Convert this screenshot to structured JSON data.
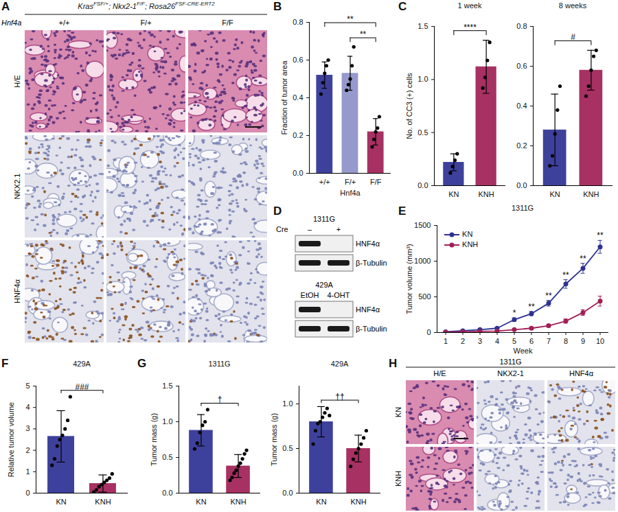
{
  "figure": {
    "A": {
      "panel": "A",
      "genotype": [
        {
          "text": "Kras",
          "sup": "FSF/+"
        },
        {
          "text": "; Nkx2-1",
          "sup": "F/F"
        },
        {
          "text": "; Rosa26",
          "sup": "FSF-CRE-ERT2"
        }
      ],
      "column_header": "Hnf4a",
      "columns": [
        "+/+",
        "F/+",
        "F/F"
      ],
      "rows": [
        "H/E",
        "NKX2.1",
        "HNF4α"
      ]
    },
    "D": {
      "panel": "D",
      "blots": [
        {
          "title": "1311G",
          "lane_header": "Cre",
          "lanes": [
            "–",
            "+"
          ],
          "rows": [
            {
              "label": "HNF4α",
              "bands": [
                true,
                false
              ]
            },
            {
              "label": "β-Tubulin",
              "bands": [
                true,
                true
              ]
            }
          ]
        },
        {
          "title": "429A",
          "lanes": [
            "EtOH",
            "4-OHT"
          ],
          "rows": [
            {
              "label": "HNF4α",
              "bands": [
                true,
                false
              ]
            },
            {
              "label": "β-Tubulin",
              "bands": [
                true,
                true
              ]
            }
          ]
        }
      ]
    },
    "H": {
      "panel": "H",
      "title": "1311G",
      "columns": [
        "H/E",
        "NKX2-1",
        "HNF4α"
      ],
      "rows": [
        "KN",
        "KNH"
      ]
    }
  },
  "chart_data": [
    {
      "panel": "B",
      "type": "bar",
      "categories": [
        "+/+",
        "F/+",
        "F/F"
      ],
      "values": [
        0.52,
        0.53,
        0.22
      ],
      "errors": [
        0.07,
        0.09,
        0.07
      ],
      "points": [
        [
          0.42,
          0.48,
          0.53,
          0.57,
          0.6
        ],
        [
          0.44,
          0.47,
          0.5,
          0.57,
          0.67
        ],
        [
          0.14,
          0.18,
          0.22,
          0.24,
          0.3
        ]
      ],
      "colors": [
        "#2e3192",
        "#8c90c8",
        "#a01f55"
      ],
      "y_label": "Fraction of tumor area",
      "x_label": "Hnf4a",
      "ylim": [
        0,
        0.8
      ],
      "yticks": [
        {
          "value": 0,
          "label": "0.0"
        },
        {
          "value": 0.2,
          "label": "0.2"
        },
        {
          "value": 0.4,
          "label": "0.4"
        },
        {
          "value": 0.6,
          "label": "0.6"
        },
        {
          "value": 0.8,
          "label": "0.8"
        }
      ],
      "significance": [
        {
          "label": "**",
          "from": "F/+",
          "to": "F/F"
        },
        {
          "label": "**",
          "from": "+/+",
          "to": "F/F"
        }
      ]
    },
    {
      "panel": "C",
      "type": "bar",
      "title": "1 week",
      "categories": [
        "KN",
        "KNH"
      ],
      "values": [
        0.22,
        1.12
      ],
      "errors": [
        0.08,
        0.25
      ],
      "points": [
        [
          0.12,
          0.18,
          0.24,
          0.3
        ],
        [
          0.92,
          1.02,
          1.18,
          1.35
        ]
      ],
      "colors": [
        "#2e3192",
        "#a01f55"
      ],
      "y_label": "No. of CC3 (+) cells",
      "ylim": [
        0,
        1.5
      ],
      "yticks": [
        {
          "value": 0,
          "label": "0.0"
        },
        {
          "value": 0.5,
          "label": "0.5"
        },
        {
          "value": 1,
          "label": "1.0"
        },
        {
          "value": 1.5,
          "label": "1.5"
        }
      ],
      "significance": [
        {
          "label": "****",
          "from": "KN",
          "to": "KNH"
        }
      ]
    },
    {
      "type": "bar",
      "title": "8 weeks",
      "categories": [
        "KN",
        "KNH"
      ],
      "values": [
        0.28,
        0.58
      ],
      "errors": [
        0.18,
        0.1
      ],
      "points": [
        [
          0.1,
          0.15,
          0.26,
          0.38,
          0.5
        ],
        [
          0.45,
          0.5,
          0.58,
          0.65,
          0.68
        ]
      ],
      "colors": [
        "#2e3192",
        "#a01f55"
      ],
      "ylim": [
        0,
        0.8
      ],
      "yticks": [
        {
          "value": 0,
          "label": "0.0"
        },
        {
          "value": 0.2,
          "label": "0.2"
        },
        {
          "value": 0.4,
          "label": "0.4"
        },
        {
          "value": 0.6,
          "label": "0.6"
        },
        {
          "value": 0.8,
          "label": "0.8"
        }
      ],
      "significance": [
        {
          "label": "#",
          "from": "KN",
          "to": "KNH"
        }
      ]
    },
    {
      "panel": "E",
      "type": "line",
      "title": "1311G",
      "x": [
        1,
        2,
        3,
        4,
        5,
        6,
        7,
        8,
        9,
        10
      ],
      "xlim": [
        0.5,
        10.5
      ],
      "xticks": [
        1,
        2,
        3,
        4,
        5,
        6,
        7,
        8,
        9,
        10
      ],
      "ylim": [
        0,
        1500
      ],
      "yticks": [
        0,
        500,
        1000,
        1500
      ],
      "x_label": "Week",
      "y_label": "Tumor volume (mm³)",
      "legend": "top-left",
      "series": [
        {
          "name": "KN",
          "color": "#2e3192",
          "marker": "circle",
          "values": [
            10,
            25,
            40,
            60,
            180,
            265,
            410,
            680,
            900,
            1200
          ],
          "errors": [
            5,
            8,
            10,
            15,
            25,
            30,
            40,
            60,
            70,
            90
          ]
        },
        {
          "name": "KNH",
          "color": "#a01f55",
          "marker": "circle",
          "values": [
            5,
            10,
            15,
            20,
            40,
            60,
            95,
            160,
            280,
            440
          ],
          "errors": [
            3,
            5,
            5,
            8,
            10,
            15,
            20,
            30,
            40,
            70
          ]
        }
      ],
      "significance": {
        "x": [
          5,
          6,
          7,
          8,
          9,
          10
        ],
        "labels": [
          "*",
          "**",
          "**",
          "**",
          "**",
          "**"
        ]
      }
    },
    {
      "panel": "F",
      "type": "bar",
      "title": "429A",
      "categories": [
        "KN",
        "KNH"
      ],
      "values": [
        2.65,
        0.45
      ],
      "errors": [
        1.2,
        0.4
      ],
      "points": [
        [
          1.3,
          1.6,
          2.2,
          2.5,
          2.7,
          3.0,
          3.4,
          4.5
        ],
        [
          0.05,
          0.15,
          0.3,
          0.4,
          0.5,
          0.6,
          0.7,
          0.9
        ]
      ],
      "colors": [
        "#2e3192",
        "#a01f55"
      ],
      "y_label": "Relative tumor volume",
      "ylim": [
        0,
        5
      ],
      "yticks": [
        0,
        1,
        2,
        3,
        4,
        5
      ],
      "significance": [
        {
          "label": "###",
          "from": "KN",
          "to": "KNH"
        }
      ]
    },
    {
      "panel": "G",
      "type": "bar",
      "title": "1311G",
      "categories": [
        "KN",
        "KNH"
      ],
      "values": [
        0.88,
        0.38
      ],
      "errors": [
        0.22,
        0.16
      ],
      "points": [
        [
          0.62,
          0.7,
          0.85,
          0.95,
          1.0,
          1.17
        ],
        [
          0.18,
          0.22,
          0.28,
          0.32,
          0.38,
          0.42,
          0.48,
          0.55,
          0.6
        ]
      ],
      "colors": [
        "#2e3192",
        "#a01f55"
      ],
      "y_label": "Tumor mass (g)",
      "ylim": [
        0,
        1.5
      ],
      "yticks": [
        {
          "value": 0,
          "label": "0.0"
        },
        {
          "value": 0.5,
          "label": "0.5"
        },
        {
          "value": 1,
          "label": "1.0"
        },
        {
          "value": 1.5,
          "label": "1.5"
        }
      ],
      "significance": [
        {
          "label": "†",
          "from": "KN",
          "to": "KNH"
        }
      ]
    },
    {
      "type": "bar",
      "title": "429A",
      "categories": [
        "KN",
        "KNH"
      ],
      "values": [
        0.8,
        0.5
      ],
      "errors": [
        0.17,
        0.15
      ],
      "points": [
        [
          0.55,
          0.7,
          0.78,
          0.8,
          0.85,
          0.9,
          0.95,
          0.87
        ],
        [
          0.3,
          0.38,
          0.45,
          0.5,
          0.55,
          0.62,
          0.7
        ]
      ],
      "colors": [
        "#2e3192",
        "#a01f55"
      ],
      "y_label": "Tumor mass (g)",
      "ylim": [
        0,
        1.2
      ],
      "yticks": [
        {
          "value": 0,
          "label": "0.0"
        },
        {
          "value": 0.5,
          "label": "0.5"
        },
        {
          "value": 1,
          "label": "1.0"
        }
      ],
      "significance": [
        {
          "label": "††",
          "from": "KN",
          "to": "KNH"
        }
      ]
    }
  ]
}
